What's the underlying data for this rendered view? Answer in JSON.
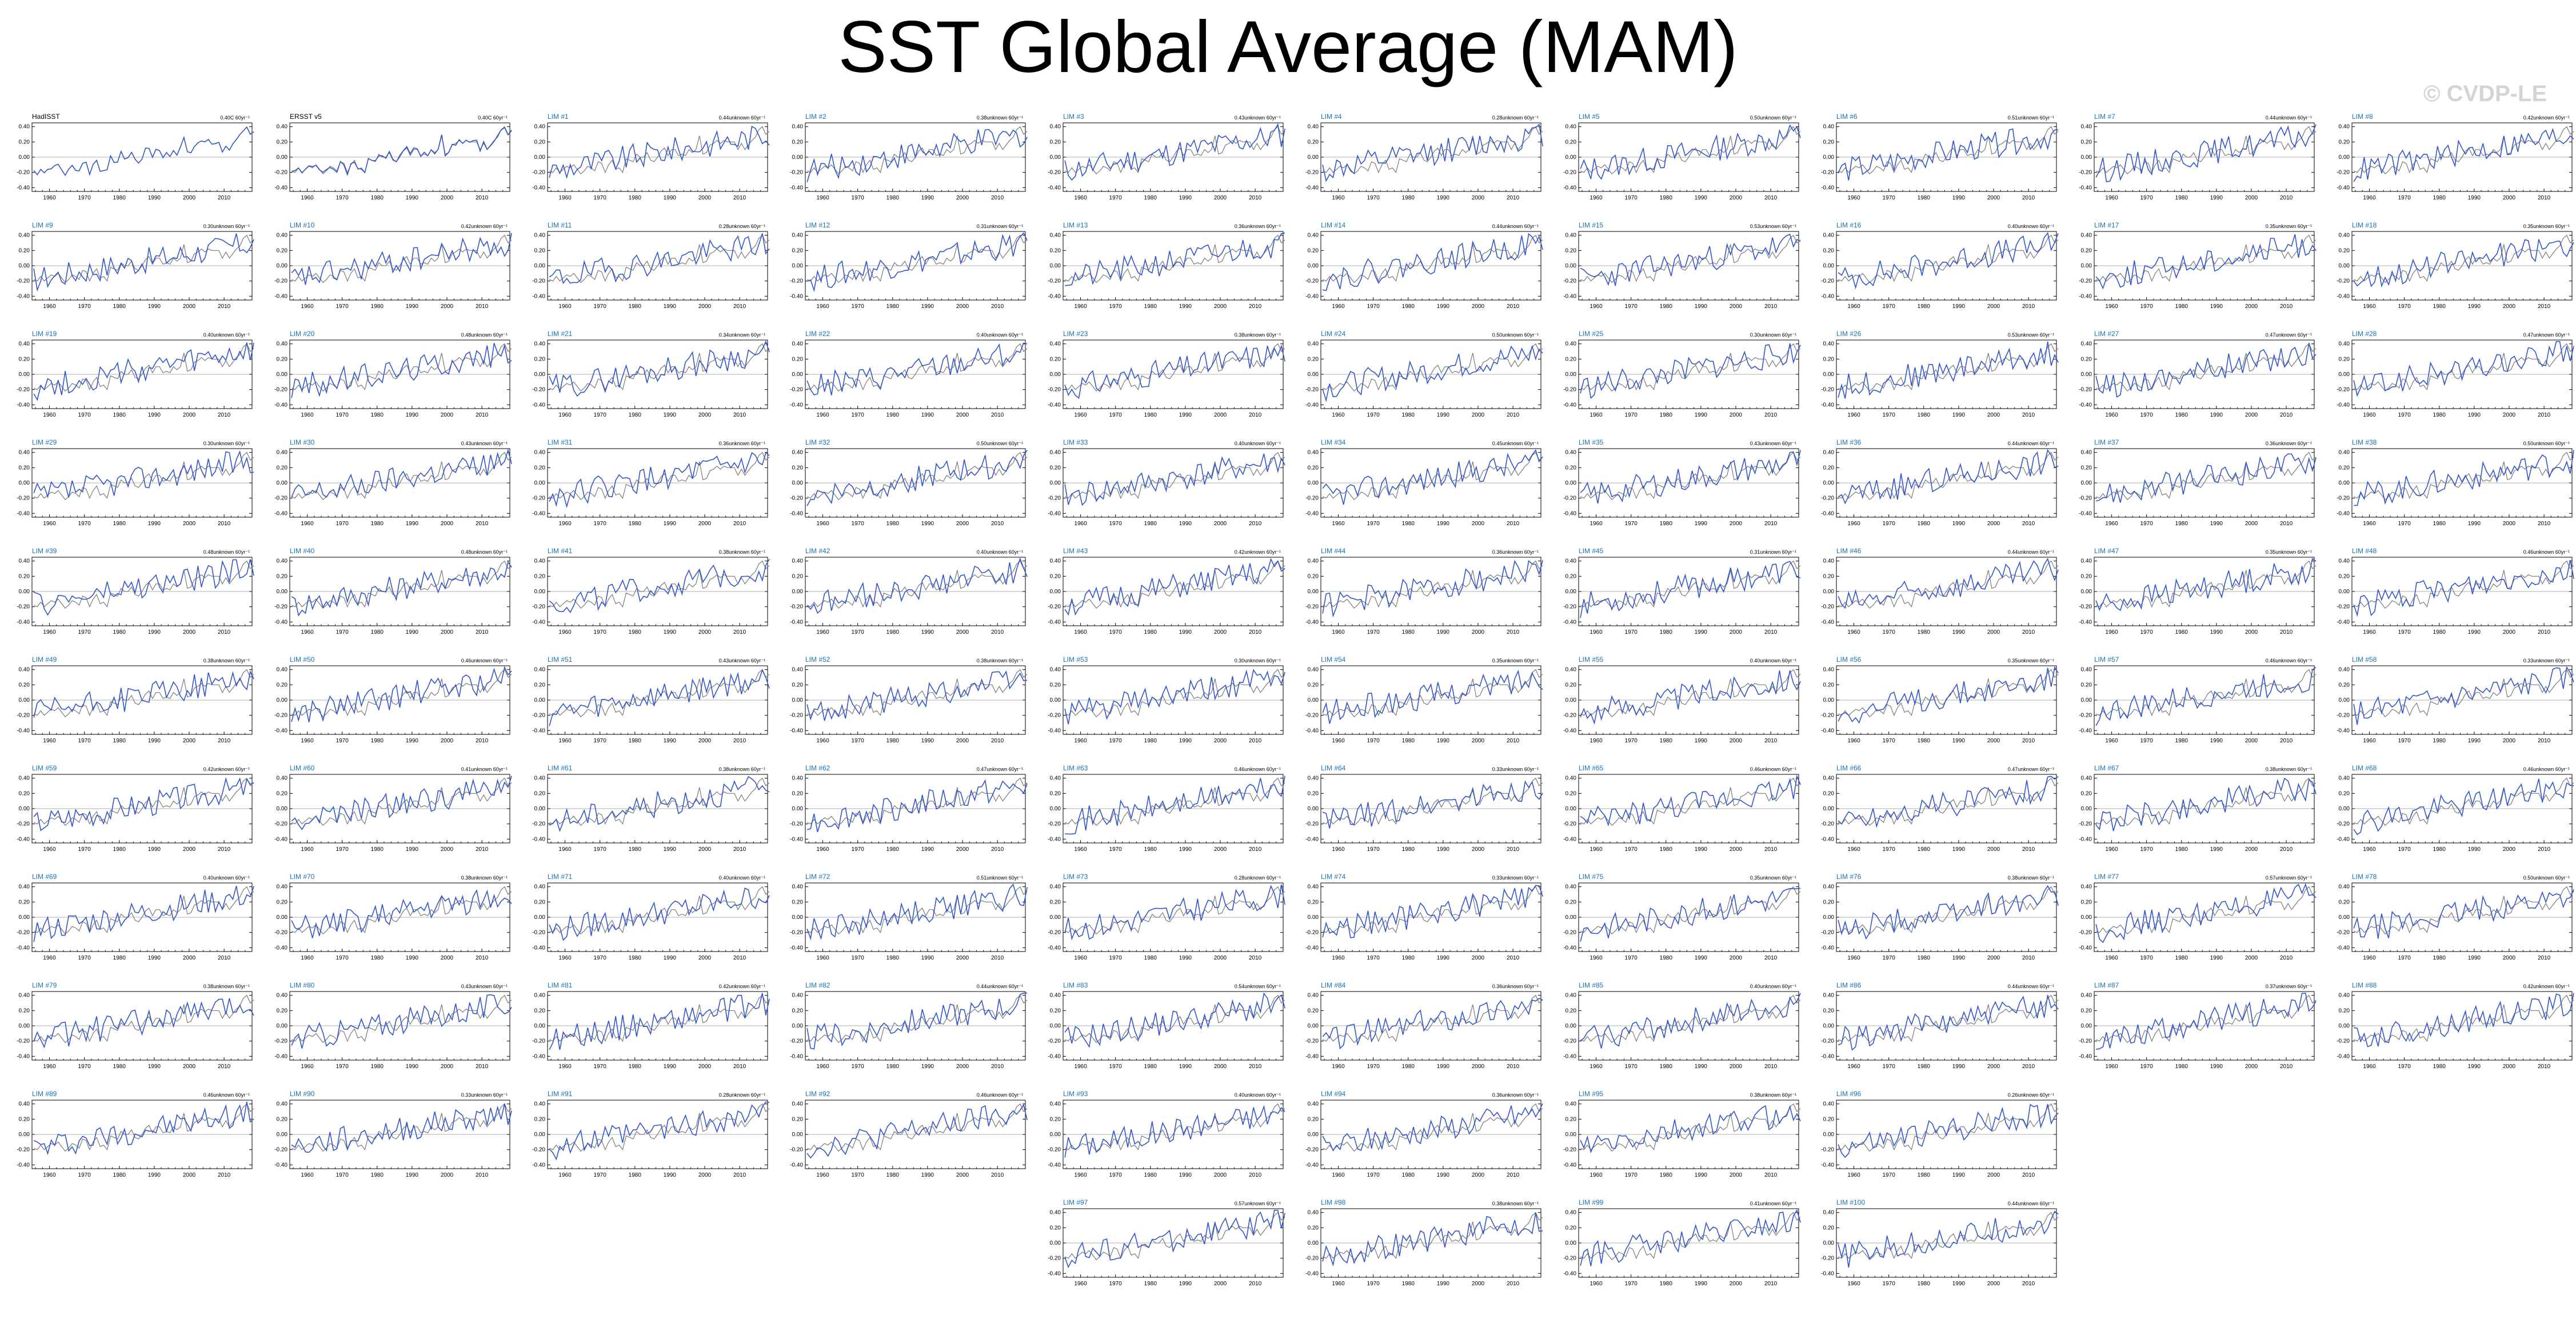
{
  "title": "SST Global Average (MAM)",
  "watermark": "© CVDP-LE",
  "colors": {
    "model_line": "#3355cc",
    "obs_line": "#7a7a7a",
    "zero_line": "#b0b0b0",
    "obs_label": "#000000",
    "model_label": "#1a73b8",
    "watermark": "#d4d4d4"
  },
  "chart_data": {
    "type": "line",
    "layout": "small-multiples",
    "xlim": [
      1955,
      2018
    ],
    "xticks": [
      1960,
      1970,
      1980,
      1990,
      2000,
      2010
    ],
    "ylim": [
      -0.45,
      0.45
    ],
    "yticks": [
      -0.4,
      -0.2,
      0.0,
      0.2,
      0.4
    ],
    "ytick_labels": [
      "-0.40",
      "-0.20",
      "0.00",
      "0.20",
      "0.40"
    ],
    "years": [
      1955,
      2018
    ],
    "panels": [
      {
        "name": "HadISST",
        "trend": "0.40C 60yr⁻¹",
        "kind": "obs"
      },
      {
        "name": "ERSST v5",
        "trend": "0.40C 60yr⁻¹",
        "kind": "obs"
      },
      {
        "name": "LIM #1",
        "trend": "0.44unknown 60yr⁻¹",
        "kind": "model"
      },
      {
        "name": "LIM #2",
        "trend": "0.38unknown 60yr⁻¹",
        "kind": "model"
      },
      {
        "name": "LIM #3",
        "trend": "0.43unknown 60yr⁻¹",
        "kind": "model"
      },
      {
        "name": "LIM #4",
        "trend": "0.28unknown 60yr⁻¹",
        "kind": "model"
      },
      {
        "name": "LIM #5",
        "trend": "0.50unknown 60yr⁻¹",
        "kind": "model"
      },
      {
        "name": "LIM #6",
        "trend": "0.51unknown 60yr⁻¹",
        "kind": "model"
      },
      {
        "name": "LIM #7",
        "trend": "0.44unknown 60yr⁻¹",
        "kind": "model"
      },
      {
        "name": "LIM #8",
        "trend": "0.42unknown 60yr⁻¹",
        "kind": "model"
      },
      {
        "name": "LIM #9",
        "trend": "0.30unknown 60yr⁻¹",
        "kind": "model"
      },
      {
        "name": "LIM #10",
        "trend": "0.42unknown 60yr⁻¹",
        "kind": "model"
      },
      {
        "name": "LIM #11",
        "trend": "0.28unknown 60yr⁻¹",
        "kind": "model"
      },
      {
        "name": "LIM #12",
        "trend": "0.31unknown 60yr⁻¹",
        "kind": "model"
      },
      {
        "name": "LIM #13",
        "trend": "0.36unknown 60yr⁻¹",
        "kind": "model"
      },
      {
        "name": "LIM #14",
        "trend": "0.44unknown 60yr⁻¹",
        "kind": "model"
      },
      {
        "name": "LIM #15",
        "trend": "0.53unknown 60yr⁻¹",
        "kind": "model"
      },
      {
        "name": "LIM #16",
        "trend": "0.40unknown 60yr⁻¹",
        "kind": "model"
      },
      {
        "name": "LIM #17",
        "trend": "0.35unknown 60yr⁻¹",
        "kind": "model"
      },
      {
        "name": "LIM #18",
        "trend": "0.35unknown 60yr⁻¹",
        "kind": "model"
      },
      {
        "name": "LIM #19",
        "trend": "0.40unknown 60yr⁻¹",
        "kind": "model"
      },
      {
        "name": "LIM #20",
        "trend": "0.48unknown 60yr⁻¹",
        "kind": "model"
      },
      {
        "name": "LIM #21",
        "trend": "0.34unknown 60yr⁻¹",
        "kind": "model"
      },
      {
        "name": "LIM #22",
        "trend": "0.40unknown 60yr⁻¹",
        "kind": "model"
      },
      {
        "name": "LIM #23",
        "trend": "0.38unknown 60yr⁻¹",
        "kind": "model"
      },
      {
        "name": "LIM #24",
        "trend": "0.50unknown 60yr⁻¹",
        "kind": "model"
      },
      {
        "name": "LIM #25",
        "trend": "0.30unknown 60yr⁻¹",
        "kind": "model"
      },
      {
        "name": "LIM #26",
        "trend": "0.53unknown 60yr⁻¹",
        "kind": "model"
      },
      {
        "name": "LIM #27",
        "trend": "0.47unknown 60yr⁻¹",
        "kind": "model"
      },
      {
        "name": "LIM #28",
        "trend": "0.47unknown 60yr⁻¹",
        "kind": "model"
      },
      {
        "name": "LIM #29",
        "trend": "0.30unknown 60yr⁻¹",
        "kind": "model"
      },
      {
        "name": "LIM #30",
        "trend": "0.43unknown 60yr⁻¹",
        "kind": "model"
      },
      {
        "name": "LIM #31",
        "trend": "0.36unknown 60yr⁻¹",
        "kind": "model"
      },
      {
        "name": "LIM #32",
        "trend": "0.50unknown 60yr⁻¹",
        "kind": "model"
      },
      {
        "name": "LIM #33",
        "trend": "0.40unknown 60yr⁻¹",
        "kind": "model"
      },
      {
        "name": "LIM #34",
        "trend": "0.45unknown 60yr⁻¹",
        "kind": "model"
      },
      {
        "name": "LIM #35",
        "trend": "0.43unknown 60yr⁻¹",
        "kind": "model"
      },
      {
        "name": "LIM #36",
        "trend": "0.44unknown 60yr⁻¹",
        "kind": "model"
      },
      {
        "name": "LIM #37",
        "trend": "0.36unknown 60yr⁻¹",
        "kind": "model"
      },
      {
        "name": "LIM #38",
        "trend": "0.50unknown 60yr⁻¹",
        "kind": "model"
      },
      {
        "name": "LIM #39",
        "trend": "0.48unknown 60yr⁻¹",
        "kind": "model"
      },
      {
        "name": "LIM #40",
        "trend": "0.48unknown 60yr⁻¹",
        "kind": "model"
      },
      {
        "name": "LIM #41",
        "trend": "0.38unknown 60yr⁻¹",
        "kind": "model"
      },
      {
        "name": "LIM #42",
        "trend": "0.40unknown 60yr⁻¹",
        "kind": "model"
      },
      {
        "name": "LIM #43",
        "trend": "0.42unknown 60yr⁻¹",
        "kind": "model"
      },
      {
        "name": "LIM #44",
        "trend": "0.36unknown 60yr⁻¹",
        "kind": "model"
      },
      {
        "name": "LIM #45",
        "trend": "0.31unknown 60yr⁻¹",
        "kind": "model"
      },
      {
        "name": "LIM #46",
        "trend": "0.44unknown 60yr⁻¹",
        "kind": "model"
      },
      {
        "name": "LIM #47",
        "trend": "0.35unknown 60yr⁻¹",
        "kind": "model"
      },
      {
        "name": "LIM #48",
        "trend": "0.46unknown 60yr⁻¹",
        "kind": "model"
      },
      {
        "name": "LIM #49",
        "trend": "0.38unknown 60yr⁻¹",
        "kind": "model"
      },
      {
        "name": "LIM #50",
        "trend": "0.46unknown 60yr⁻¹",
        "kind": "model"
      },
      {
        "name": "LIM #51",
        "trend": "0.43unknown 60yr⁻¹",
        "kind": "model"
      },
      {
        "name": "LIM #52",
        "trend": "0.38unknown 60yr⁻¹",
        "kind": "model"
      },
      {
        "name": "LIM #53",
        "trend": "0.30unknown 60yr⁻¹",
        "kind": "model"
      },
      {
        "name": "LIM #54",
        "trend": "0.35unknown 60yr⁻¹",
        "kind": "model"
      },
      {
        "name": "LIM #55",
        "trend": "0.40unknown 60yr⁻¹",
        "kind": "model"
      },
      {
        "name": "LIM #56",
        "trend": "0.35unknown 60yr⁻¹",
        "kind": "model"
      },
      {
        "name": "LIM #57",
        "trend": "0.46unknown 60yr⁻¹",
        "kind": "model"
      },
      {
        "name": "LIM #58",
        "trend": "0.33unknown 60yr⁻¹",
        "kind": "model"
      },
      {
        "name": "LIM #59",
        "trend": "0.42unknown 60yr⁻¹",
        "kind": "model"
      },
      {
        "name": "LIM #60",
        "trend": "0.41unknown 60yr⁻¹",
        "kind": "model"
      },
      {
        "name": "LIM #61",
        "trend": "0.38unknown 60yr⁻¹",
        "kind": "model"
      },
      {
        "name": "LIM #62",
        "trend": "0.47unknown 60yr⁻¹",
        "kind": "model"
      },
      {
        "name": "LIM #63",
        "trend": "0.46unknown 60yr⁻¹",
        "kind": "model"
      },
      {
        "name": "LIM #64",
        "trend": "0.33unknown 60yr⁻¹",
        "kind": "model"
      },
      {
        "name": "LIM #65",
        "trend": "0.46unknown 60yr⁻¹",
        "kind": "model"
      },
      {
        "name": "LIM #66",
        "trend": "0.47unknown 60yr⁻¹",
        "kind": "model"
      },
      {
        "name": "LIM #67",
        "trend": "0.38unknown 60yr⁻¹",
        "kind": "model"
      },
      {
        "name": "LIM #68",
        "trend": "0.46unknown 60yr⁻¹",
        "kind": "model"
      },
      {
        "name": "LIM #69",
        "trend": "0.40unknown 60yr⁻¹",
        "kind": "model"
      },
      {
        "name": "LIM #70",
        "trend": "0.38unknown 60yr⁻¹",
        "kind": "model"
      },
      {
        "name": "LIM #71",
        "trend": "0.40unknown 60yr⁻¹",
        "kind": "model"
      },
      {
        "name": "LIM #72",
        "trend": "0.51unknown 60yr⁻¹",
        "kind": "model"
      },
      {
        "name": "LIM #73",
        "trend": "0.28unknown 60yr⁻¹",
        "kind": "model"
      },
      {
        "name": "LIM #74",
        "trend": "0.33unknown 60yr⁻¹",
        "kind": "model"
      },
      {
        "name": "LIM #75",
        "trend": "0.35unknown 60yr⁻¹",
        "kind": "model"
      },
      {
        "name": "LIM #76",
        "trend": "0.38unknown 60yr⁻¹",
        "kind": "model"
      },
      {
        "name": "LIM #77",
        "trend": "0.57unknown 60yr⁻¹",
        "kind": "model"
      },
      {
        "name": "LIM #78",
        "trend": "0.50unknown 60yr⁻¹",
        "kind": "model"
      },
      {
        "name": "LIM #79",
        "trend": "0.38unknown 60yr⁻¹",
        "kind": "model"
      },
      {
        "name": "LIM #80",
        "trend": "0.43unknown 60yr⁻¹",
        "kind": "model"
      },
      {
        "name": "LIM #81",
        "trend": "0.42unknown 60yr⁻¹",
        "kind": "model"
      },
      {
        "name": "LIM #82",
        "trend": "0.44unknown 60yr⁻¹",
        "kind": "model"
      },
      {
        "name": "LIM #83",
        "trend": "0.54unknown 60yr⁻¹",
        "kind": "model"
      },
      {
        "name": "LIM #84",
        "trend": "0.36unknown 60yr⁻¹",
        "kind": "model"
      },
      {
        "name": "LIM #85",
        "trend": "0.40unknown 60yr⁻¹",
        "kind": "model"
      },
      {
        "name": "LIM #86",
        "trend": "0.44unknown 60yr⁻¹",
        "kind": "model"
      },
      {
        "name": "LIM #87",
        "trend": "0.37unknown 60yr⁻¹",
        "kind": "model"
      },
      {
        "name": "LIM #88",
        "trend": "0.42unknown 60yr⁻¹",
        "kind": "model"
      },
      {
        "name": "LIM #89",
        "trend": "0.46unknown 60yr⁻¹",
        "kind": "model"
      },
      {
        "name": "LIM #90",
        "trend": "0.33unknown 60yr⁻¹",
        "kind": "model"
      },
      {
        "name": "LIM #91",
        "trend": "0.28unknown 60yr⁻¹",
        "kind": "model"
      },
      {
        "name": "LIM #92",
        "trend": "0.46unknown 60yr⁻¹",
        "kind": "model"
      },
      {
        "name": "LIM #93",
        "trend": "0.40unknown 60yr⁻¹",
        "kind": "model"
      },
      {
        "name": "LIM #94",
        "trend": "0.36unknown 60yr⁻¹",
        "kind": "model"
      },
      {
        "name": "LIM #95",
        "trend": "0.38unknown 60yr⁻¹",
        "kind": "model"
      },
      {
        "name": "LIM #96",
        "trend": "0.26unknown 60yr⁻¹",
        "kind": "model"
      },
      {
        "name": "LIM #97",
        "trend": "0.57unknown 60yr⁻¹",
        "kind": "model"
      },
      {
        "name": "LIM #98",
        "trend": "0.38unknown 60yr⁻¹",
        "kind": "model"
      },
      {
        "name": "LIM #99",
        "trend": "0.41unknown 60yr⁻¹",
        "kind": "model"
      },
      {
        "name": "LIM #100",
        "trend": "0.44unknown 60yr⁻¹",
        "kind": "model"
      }
    ],
    "obs_reference": [
      -0.18,
      -0.2,
      -0.14,
      -0.2,
      -0.16,
      -0.12,
      -0.14,
      -0.1,
      -0.16,
      -0.22,
      -0.18,
      -0.12,
      -0.14,
      -0.18,
      -0.06,
      -0.08,
      -0.2,
      -0.1,
      -0.04,
      -0.16,
      -0.14,
      -0.2,
      -0.02,
      -0.04,
      -0.06,
      0.04,
      0.0,
      0.0,
      0.06,
      -0.04,
      -0.06,
      0.0,
      0.08,
      0.12,
      0.02,
      0.1,
      0.1,
      0.02,
      0.04,
      0.02,
      0.1,
      0.06,
      0.1,
      0.28,
      0.04,
      0.06,
      0.16,
      0.18,
      0.22,
      0.18,
      0.22,
      0.2,
      0.2,
      0.2,
      0.1,
      0.18,
      0.1,
      0.16,
      0.22,
      0.26,
      0.36,
      0.4,
      0.3,
      0.34
    ]
  }
}
